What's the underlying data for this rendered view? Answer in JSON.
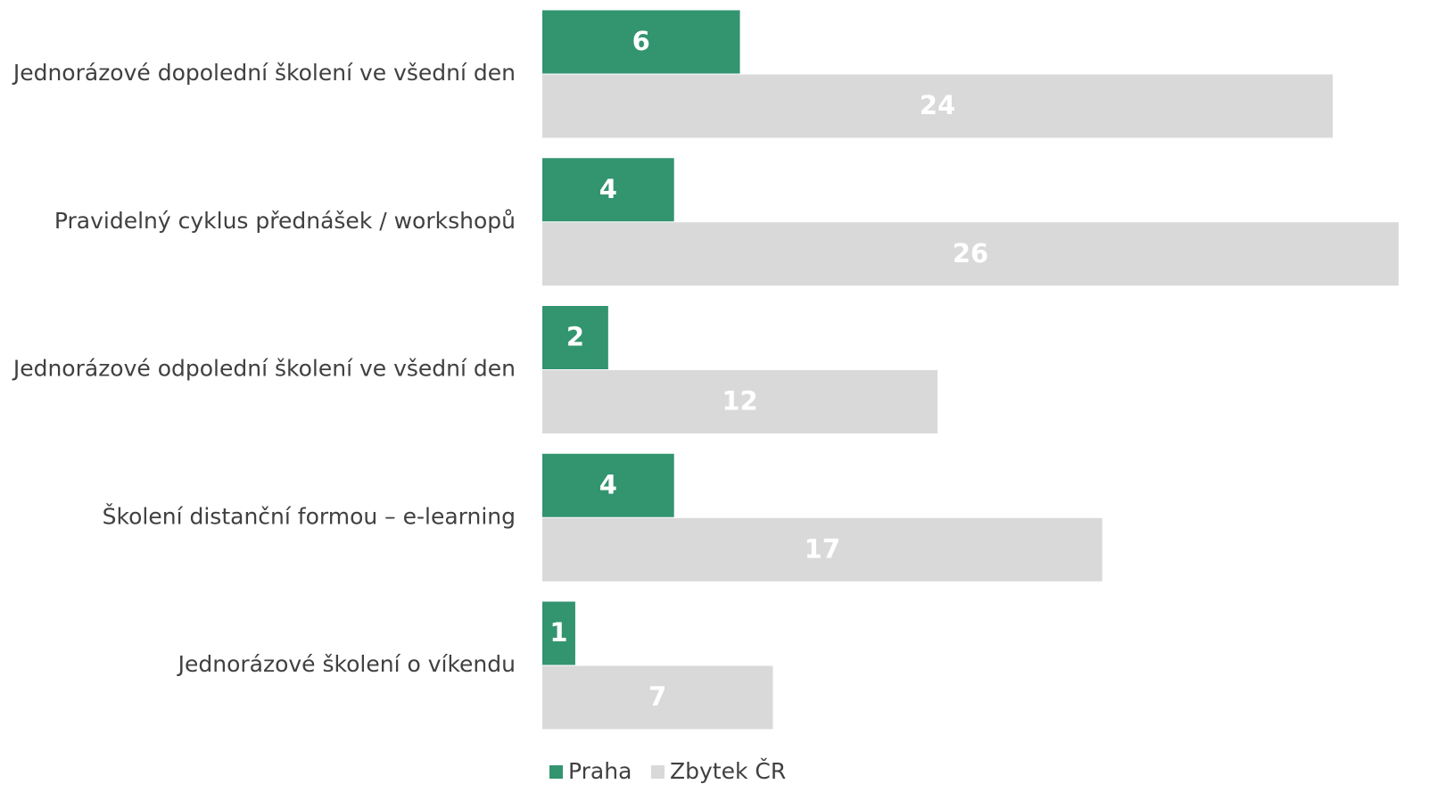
{
  "chart_data": {
    "type": "bar",
    "orientation": "horizontal",
    "categories": [
      "Jednorázové dopolední školení ve všední den",
      "Pravidelný cyklus přednášek / workshopů",
      "Jednorázové odpolední školení ve všední den",
      "Školení distanční formou – e-learning",
      "Jednorázové školení o víkendu"
    ],
    "series": [
      {
        "name": "Praha",
        "color": "#339470",
        "values": [
          6,
          4,
          2,
          4,
          1
        ]
      },
      {
        "name": "Zbytek ČR",
        "color": "#d9d9d9",
        "values": [
          24,
          26,
          12,
          17,
          7
        ]
      }
    ],
    "xlim": [
      0,
      26
    ],
    "legend": "bottom"
  }
}
